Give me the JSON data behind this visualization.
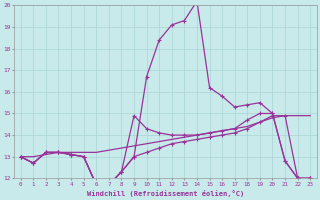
{
  "xlabel": "Windchill (Refroidissement éolien,°C)",
  "xlim": [
    -0.5,
    23.5
  ],
  "ylim": [
    12,
    20
  ],
  "yticks": [
    12,
    13,
    14,
    15,
    16,
    17,
    18,
    19,
    20
  ],
  "xticks": [
    0,
    1,
    2,
    3,
    4,
    5,
    6,
    7,
    8,
    9,
    10,
    11,
    12,
    13,
    14,
    15,
    16,
    17,
    18,
    19,
    20,
    21,
    22,
    23
  ],
  "bg_color": "#c8eaea",
  "grid_color": "#aad4d4",
  "line_color": "#993399",
  "series": {
    "line1_x": [
      0,
      1,
      2,
      3,
      4,
      5,
      6,
      7,
      8,
      9,
      10,
      11,
      12,
      13,
      14,
      15,
      16,
      17,
      18,
      19,
      20,
      21,
      22,
      23
    ],
    "line1_y": [
      13.0,
      12.7,
      13.2,
      13.2,
      13.1,
      13.0,
      11.7,
      11.7,
      12.3,
      13.0,
      16.7,
      18.4,
      19.1,
      19.3,
      20.2,
      16.2,
      15.8,
      15.3,
      15.4,
      15.5,
      15.0,
      12.8,
      12.0,
      12.0
    ],
    "line2_x": [
      0,
      1,
      2,
      3,
      4,
      5,
      6,
      7,
      8,
      9,
      10,
      11,
      12,
      13,
      14,
      15,
      16,
      17,
      18,
      19,
      20,
      21,
      22,
      23
    ],
    "line2_y": [
      13.0,
      12.7,
      13.2,
      13.2,
      13.1,
      13.0,
      11.7,
      11.7,
      12.3,
      14.9,
      14.3,
      14.1,
      14.0,
      14.0,
      14.0,
      14.1,
      14.2,
      14.3,
      14.7,
      15.0,
      15.0,
      12.8,
      12.0,
      12.0
    ],
    "line3_x": [
      0,
      1,
      2,
      3,
      4,
      5,
      6,
      7,
      8,
      9,
      10,
      11,
      12,
      13,
      14,
      15,
      16,
      17,
      18,
      19,
      20,
      21,
      22,
      23
    ],
    "line3_y": [
      13.0,
      13.0,
      13.1,
      13.2,
      13.2,
      13.2,
      13.2,
      13.3,
      13.4,
      13.5,
      13.6,
      13.7,
      13.8,
      13.9,
      14.0,
      14.1,
      14.2,
      14.3,
      14.4,
      14.6,
      14.8,
      14.9,
      14.9,
      14.9
    ],
    "line4_x": [
      0,
      1,
      2,
      3,
      4,
      5,
      6,
      7,
      8,
      9,
      10,
      11,
      12,
      13,
      14,
      15,
      16,
      17,
      18,
      19,
      20,
      21,
      22,
      23
    ],
    "line4_y": [
      13.0,
      12.7,
      13.2,
      13.2,
      13.1,
      13.0,
      11.7,
      11.7,
      12.3,
      13.0,
      13.2,
      13.4,
      13.6,
      13.7,
      13.8,
      13.9,
      14.0,
      14.1,
      14.3,
      14.6,
      14.9,
      14.9,
      12.0,
      12.0
    ]
  }
}
